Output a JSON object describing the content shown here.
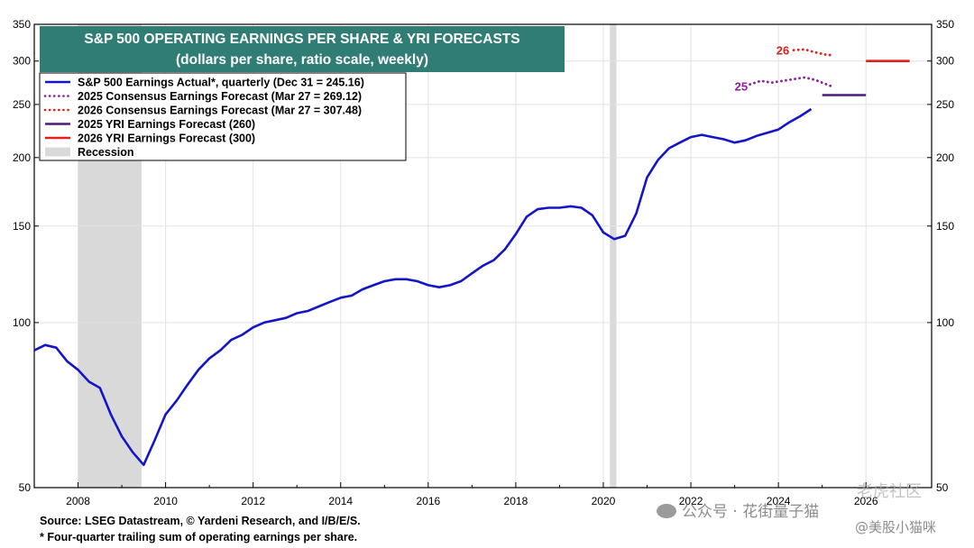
{
  "chart_data": {
    "type": "line",
    "title": "S&P 500 OPERATING EARNINGS PER SHARE & YRI FORECASTS",
    "subtitle": "(dollars per share, ratio scale, weekly)",
    "scale": "log",
    "grid": true,
    "legend_position": "top-left",
    "xlim": [
      2007.0,
      2027.5
    ],
    "ylim": [
      50,
      350
    ],
    "x_ticks": [
      "2008",
      "2010",
      "2012",
      "2014",
      "2016",
      "2018",
      "2020",
      "2022",
      "2024",
      "2026"
    ],
    "x_tick_values": [
      2008,
      2010,
      2012,
      2014,
      2016,
      2018,
      2020,
      2022,
      2024,
      2026
    ],
    "y_ticks": [
      50,
      100,
      150,
      200,
      250,
      300,
      350
    ],
    "recessions": [
      [
        2008.0,
        2009.45
      ],
      [
        2020.15,
        2020.3
      ]
    ],
    "series": [
      {
        "name": "S&P 500 Earnings Actual*, quarterly (Dec 31 = 245.16)",
        "color": "#1515c8",
        "style": "solid",
        "x": [
          2007.0,
          2007.25,
          2007.5,
          2007.75,
          2008.0,
          2008.25,
          2008.5,
          2008.75,
          2009.0,
          2009.25,
          2009.5,
          2009.75,
          2010.0,
          2010.25,
          2010.5,
          2010.75,
          2011.0,
          2011.25,
          2011.5,
          2011.75,
          2012.0,
          2012.25,
          2012.5,
          2012.75,
          2013.0,
          2013.25,
          2013.5,
          2013.75,
          2014.0,
          2014.25,
          2014.5,
          2014.75,
          2015.0,
          2015.25,
          2015.5,
          2015.75,
          2016.0,
          2016.25,
          2016.5,
          2016.75,
          2017.0,
          2017.25,
          2017.5,
          2017.75,
          2018.0,
          2018.25,
          2018.5,
          2018.75,
          2019.0,
          2019.25,
          2019.5,
          2019.75,
          2020.0,
          2020.25,
          2020.5,
          2020.75,
          2021.0,
          2021.25,
          2021.5,
          2021.75,
          2022.0,
          2022.25,
          2022.5,
          2022.75,
          2023.0,
          2023.25,
          2023.5,
          2023.75,
          2024.0,
          2024.25,
          2024.5,
          2024.75
        ],
        "values": [
          89,
          91,
          90,
          85,
          82,
          78,
          76,
          68,
          62,
          58,
          55,
          61,
          68,
          72,
          77,
          82,
          86,
          89,
          93,
          95,
          98,
          100,
          101,
          102,
          104,
          105,
          107,
          109,
          111,
          112,
          115,
          117,
          119,
          120,
          120,
          119,
          117,
          116,
          117,
          119,
          123,
          127,
          130,
          136,
          145,
          156,
          161,
          162,
          162,
          163,
          162,
          157,
          146,
          142,
          144,
          158,
          184,
          198,
          208,
          213,
          218,
          220,
          218,
          216,
          213,
          215,
          219,
          222,
          225,
          232,
          238,
          245.16
        ]
      },
      {
        "name": "2025 Consensus Earnings Forecast (Mar 27 = 269.12)",
        "color": "#8a1f9e",
        "style": "dotted",
        "x": [
          2023.35,
          2023.6,
          2023.85,
          2024.1,
          2024.35,
          2024.6,
          2024.85,
          2025.1,
          2025.25
        ],
        "values": [
          272,
          276,
          274,
          276,
          278,
          280,
          277,
          272,
          269.12
        ]
      },
      {
        "name": "2026 Consensus Earnings Forecast (Mar 27 = 307.48)",
        "color": "#e0201a",
        "style": "dotted",
        "x": [
          2024.35,
          2024.6,
          2024.85,
          2025.1,
          2025.25
        ],
        "values": [
          314,
          315,
          311,
          308,
          307.48
        ]
      },
      {
        "name": "2025 YRI Earnings Forecast (260)",
        "color": "#4b1a7a",
        "style": "solid",
        "x": [
          2025.0,
          2026.0
        ],
        "values": [
          260,
          260
        ]
      },
      {
        "name": "2026 YRI Earnings Forecast (300)",
        "color": "#e0201a",
        "style": "solid",
        "x": [
          2026.0,
          2027.0
        ],
        "values": [
          300,
          300
        ]
      }
    ],
    "recession_legend": "Recession",
    "annotations": [
      {
        "text": "25",
        "x": 2023.15,
        "y": 270,
        "color": "#8a1f9e"
      },
      {
        "text": "26",
        "x": 2024.1,
        "y": 314,
        "color": "#e0201a"
      }
    ]
  },
  "footer": {
    "source": "Source: LSEG Datastream, © Yardeni Research, and I/B/E/S.",
    "note": "* Four-quarter trailing sum of operating earnings per share."
  },
  "watermark": {
    "left": "公众号 · 花街量子猫",
    "right": "@美股小猫咪",
    "corner": "老虎社区"
  },
  "colors": {
    "title_bg": "#2f7d74",
    "recession": "#d9d9d9",
    "grid": "#e2e2e2"
  }
}
